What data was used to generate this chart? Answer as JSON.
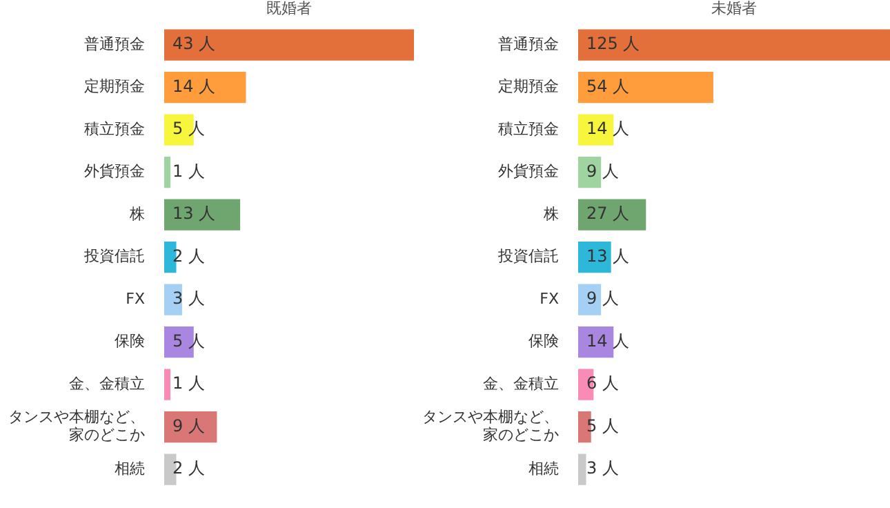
{
  "chart_data": [
    {
      "type": "bar",
      "orientation": "horizontal",
      "title": "既婚者",
      "categories": [
        "普通預金",
        "定期預金",
        "積立預金",
        "外貨預金",
        "株",
        "投資信託",
        "FX",
        "保険",
        "金、金積立",
        "タンスや本棚など、家のどこか",
        "相続"
      ],
      "values": [
        43,
        14,
        5,
        1,
        13,
        2,
        3,
        5,
        1,
        9,
        2
      ],
      "value_labels": [
        "43 人",
        "14 人",
        "5 人",
        "1 人",
        "13 人",
        "2 人",
        "3 人",
        "5 人",
        "1 人",
        "9 人",
        "2 人"
      ],
      "colors": [
        "#e3703a",
        "#ff9d3c",
        "#f7f53c",
        "#9fd39f",
        "#6fa56f",
        "#2db8d9",
        "#a5cff3",
        "#a986df",
        "#f98cb6",
        "#d97676",
        "#c9c9c9"
      ],
      "legend": false
    },
    {
      "type": "bar",
      "orientation": "horizontal",
      "title": "未婚者",
      "categories": [
        "普通預金",
        "定期預金",
        "積立預金",
        "外貨預金",
        "株",
        "投資信託",
        "FX",
        "保険",
        "金、金積立",
        "タンスや本棚など、家のどこか",
        "相続"
      ],
      "values": [
        125,
        54,
        14,
        9,
        27,
        13,
        9,
        14,
        6,
        5,
        3
      ],
      "value_labels": [
        "125 人",
        "54 人",
        "14 人",
        "9 人",
        "27 人",
        "13 人",
        "9 人",
        "14 人",
        "6 人",
        "5 人",
        "3 人"
      ],
      "colors": [
        "#e3703a",
        "#ff9d3c",
        "#f7f53c",
        "#9fd39f",
        "#6fa56f",
        "#2db8d9",
        "#a5cff3",
        "#a986df",
        "#f98cb6",
        "#d97676",
        "#c9c9c9"
      ],
      "legend": false
    }
  ]
}
